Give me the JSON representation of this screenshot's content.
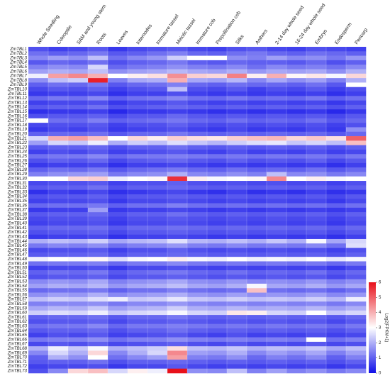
{
  "chart_data": {
    "type": "heatmap",
    "x": [
      "Whole Seedling",
      "Coleoptile",
      "SAM and young stem",
      "Roots",
      "Leaves",
      "Internodes",
      "Immature tassel",
      "Meiotic tassel",
      "Immature cob",
      "Prepollination cob",
      "Silks",
      "Anthers",
      "2-14 day whole seed",
      "16-24 day whole seed",
      "Embryo",
      "Endosperm",
      "Pericarp"
    ],
    "y": [
      "ZmTBL1",
      "ZmTBL2",
      "ZmTBL3",
      "ZmTBL4",
      "ZmTBL5",
      "ZmTBL6",
      "ZmTBL7",
      "ZmTBL8",
      "ZmTBL9",
      "ZmTBL10",
      "ZmTBL11",
      "ZmTBL12",
      "ZmTBL13",
      "ZmTBL14",
      "ZmTBL15",
      "ZmTBL16",
      "ZmTBL17",
      "ZmTBL18",
      "ZmTBL19",
      "ZmTBL20",
      "ZmTBL21",
      "ZmTBL22",
      "ZmTBL23",
      "ZmTBL24",
      "ZmTBL25",
      "ZmTBL26",
      "ZmTBL27",
      "ZmTBL28",
      "ZmTBL29",
      "ZmTBL30",
      "ZmTBL31",
      "ZmTBL32",
      "ZmTBL33",
      "ZmTBL34",
      "ZmTBL35",
      "ZmTBL36",
      "ZmTBL37",
      "ZmTBL38",
      "ZmTBL39",
      "ZmTBL40",
      "ZmTBL41",
      "ZmTBL42",
      "ZmTBL43",
      "ZmTBL44",
      "ZmTBL45",
      "ZmTBL46",
      "ZmTBL47",
      "ZmTBL48",
      "ZmTBL49",
      "ZmTBL50",
      "ZmTBL51",
      "ZmTBL52",
      "ZmTBL53",
      "ZmTBL54",
      "ZmTBL55",
      "ZmTBL56",
      "ZmTBL57",
      "ZmTBL58",
      "ZmTBL59",
      "ZmTBL60",
      "ZmTBL61",
      "ZmTBL62",
      "ZmTBL63",
      "ZmTBL64",
      "ZmTBL65",
      "ZmTBL66",
      "ZmTBL67",
      "ZmTBL68",
      "ZmTBL69",
      "ZmTBL70",
      "ZmTBL71",
      "ZmTBL72",
      "ZmTBL73"
    ],
    "values": [
      [
        0.8,
        0.6,
        0.7,
        0.9,
        0.5,
        0.7,
        0.8,
        0.9,
        0.7,
        0.6,
        0.8,
        0.9,
        0.7,
        0.6,
        0.8,
        0.7,
        0.6
      ],
      [
        1.2,
        1.0,
        1.1,
        1.3,
        0.9,
        1.0,
        1.2,
        1.4,
        1.1,
        1.0,
        1.2,
        1.3,
        1.1,
        1.0,
        1.2,
        1.1,
        1.0
      ],
      [
        1.5,
        1.8,
        1.6,
        2.2,
        1.2,
        1.5,
        1.7,
        2.4,
        3.0,
        3.0,
        1.6,
        1.4,
        1.8,
        1.5,
        1.6,
        1.3,
        1.7
      ],
      [
        0.9,
        1.1,
        1.0,
        1.2,
        0.8,
        1.0,
        1.1,
        1.3,
        1.0,
        0.9,
        1.1,
        1.0,
        1.0,
        0.9,
        1.1,
        0.8,
        1.0
      ],
      [
        1.4,
        1.6,
        1.5,
        2.5,
        1.1,
        1.3,
        1.4,
        1.6,
        1.4,
        1.3,
        1.5,
        1.2,
        1.5,
        1.3,
        1.4,
        1.2,
        1.5
      ],
      [
        1.8,
        2.0,
        1.9,
        2.2,
        1.6,
        1.8,
        1.9,
        2.1,
        1.9,
        1.8,
        2.0,
        1.7,
        1.9,
        1.8,
        1.9,
        1.6,
        2.0
      ],
      [
        2.8,
        4.2,
        4.5,
        4.0,
        3.0,
        3.2,
        3.4,
        4.4,
        3.6,
        3.5,
        4.6,
        3.2,
        4.0,
        3.1,
        3.3,
        2.9,
        3.5
      ],
      [
        1.6,
        2.2,
        2.4,
        5.8,
        1.4,
        1.9,
        2.0,
        4.0,
        1.9,
        1.8,
        2.1,
        1.5,
        1.9,
        1.6,
        1.8,
        1.4,
        2.0
      ],
      [
        1.0,
        1.2,
        1.1,
        1.3,
        0.9,
        1.1,
        1.2,
        1.4,
        1.1,
        1.0,
        1.2,
        1.1,
        1.1,
        1.0,
        1.2,
        0.9,
        3.0
      ],
      [
        0.7,
        0.9,
        0.8,
        1.0,
        0.6,
        0.8,
        0.9,
        2.2,
        0.8,
        0.7,
        0.9,
        0.6,
        0.8,
        0.7,
        0.9,
        0.6,
        0.8
      ],
      [
        0.5,
        0.6,
        0.6,
        0.7,
        0.4,
        0.6,
        0.6,
        0.8,
        0.6,
        0.5,
        0.6,
        0.5,
        0.6,
        0.5,
        0.6,
        0.4,
        0.6
      ],
      [
        1.1,
        1.3,
        1.2,
        1.5,
        1.0,
        1.2,
        1.3,
        1.5,
        1.2,
        1.1,
        1.3,
        1.1,
        1.2,
        1.1,
        1.3,
        1.0,
        1.2
      ],
      [
        0.6,
        0.7,
        0.7,
        0.8,
        0.5,
        0.7,
        0.7,
        0.9,
        0.7,
        0.6,
        0.7,
        0.6,
        0.7,
        0.6,
        0.7,
        0.5,
        0.7
      ],
      [
        0.9,
        1.0,
        1.0,
        1.2,
        0.8,
        0.9,
        1.0,
        1.1,
        1.0,
        0.9,
        1.0,
        0.9,
        1.0,
        0.9,
        1.0,
        0.8,
        1.0
      ],
      [
        0.4,
        0.5,
        0.5,
        0.6,
        0.3,
        0.5,
        0.5,
        0.6,
        0.5,
        0.4,
        0.5,
        0.4,
        0.5,
        0.4,
        0.5,
        0.3,
        0.5
      ],
      [
        0.8,
        0.9,
        0.9,
        1.0,
        0.7,
        0.9,
        0.9,
        1.1,
        0.9,
        0.8,
        0.9,
        0.8,
        0.9,
        0.8,
        0.9,
        0.7,
        0.9
      ],
      [
        3.0,
        1.2,
        1.1,
        1.4,
        1.0,
        1.1,
        1.2,
        1.3,
        1.1,
        1.0,
        1.2,
        1.0,
        1.1,
        1.0,
        1.2,
        0.9,
        1.1
      ],
      [
        0.7,
        0.8,
        0.8,
        0.9,
        0.6,
        0.8,
        0.8,
        1.0,
        0.8,
        0.7,
        0.8,
        0.7,
        0.8,
        0.7,
        0.8,
        0.6,
        0.8
      ],
      [
        0.5,
        0.7,
        0.6,
        0.8,
        0.5,
        0.6,
        0.7,
        0.8,
        0.6,
        0.5,
        0.7,
        0.5,
        0.6,
        0.5,
        0.7,
        0.5,
        1.6
      ],
      [
        1.0,
        1.1,
        1.1,
        1.2,
        0.9,
        1.1,
        1.1,
        1.3,
        1.1,
        1.0,
        1.1,
        1.0,
        1.1,
        1.0,
        1.1,
        0.9,
        1.1
      ],
      [
        2.5,
        4.0,
        4.2,
        3.8,
        3.0,
        3.5,
        3.2,
        3.6,
        3.4,
        3.3,
        3.6,
        3.8,
        3.9,
        3.5,
        3.7,
        3.4,
        5.0
      ],
      [
        1.8,
        2.5,
        2.3,
        2.8,
        2.0,
        2.4,
        2.2,
        2.6,
        2.3,
        2.1,
        2.4,
        2.6,
        2.7,
        2.3,
        2.5,
        2.2,
        3.8
      ],
      [
        0.9,
        1.0,
        1.0,
        1.1,
        0.8,
        1.0,
        1.0,
        1.2,
        1.0,
        0.9,
        1.0,
        0.9,
        1.0,
        0.9,
        1.0,
        0.8,
        1.0
      ],
      [
        0.6,
        0.8,
        0.7,
        0.9,
        0.6,
        0.7,
        0.8,
        0.9,
        0.7,
        0.6,
        0.8,
        0.6,
        0.7,
        0.6,
        0.8,
        0.6,
        0.7
      ],
      [
        1.2,
        1.3,
        1.3,
        1.5,
        1.1,
        1.3,
        1.3,
        1.4,
        1.3,
        1.2,
        1.3,
        1.2,
        1.3,
        1.2,
        1.3,
        1.1,
        1.3
      ],
      [
        0.8,
        1.0,
        0.9,
        1.1,
        0.7,
        0.9,
        1.0,
        1.1,
        0.9,
        0.8,
        1.0,
        0.8,
        0.9,
        0.8,
        1.0,
        0.7,
        0.9
      ],
      [
        0.5,
        0.6,
        0.6,
        0.7,
        0.4,
        0.6,
        0.6,
        0.7,
        0.6,
        0.5,
        0.6,
        0.5,
        0.6,
        0.5,
        0.6,
        0.4,
        0.6
      ],
      [
        1.0,
        1.2,
        1.1,
        1.3,
        0.9,
        1.1,
        1.2,
        1.3,
        1.1,
        1.0,
        1.2,
        1.0,
        1.1,
        1.0,
        1.2,
        0.9,
        1.1
      ],
      [
        1.4,
        1.6,
        1.7,
        1.8,
        1.3,
        1.5,
        1.6,
        2.0,
        1.5,
        1.4,
        1.6,
        1.4,
        2.2,
        1.5,
        1.6,
        1.3,
        1.5
      ],
      [
        3.0,
        3.0,
        3.5,
        3.6,
        2.8,
        3.0,
        3.1,
        5.6,
        3.2,
        2.9,
        3.0,
        3.1,
        4.5,
        3.0,
        3.2,
        2.9,
        3.0
      ],
      [
        0.7,
        0.8,
        0.8,
        0.9,
        0.6,
        0.8,
        0.8,
        1.0,
        0.8,
        0.7,
        0.8,
        0.7,
        0.8,
        0.7,
        0.8,
        0.6,
        0.8
      ],
      [
        0.9,
        1.0,
        1.0,
        1.2,
        0.8,
        1.0,
        1.0,
        1.1,
        1.0,
        0.9,
        1.0,
        0.9,
        1.0,
        0.9,
        1.0,
        0.8,
        1.0
      ],
      [
        0.4,
        0.6,
        0.5,
        0.7,
        0.4,
        0.5,
        0.6,
        0.7,
        0.5,
        0.4,
        0.6,
        0.4,
        0.5,
        0.4,
        0.6,
        0.4,
        0.5
      ],
      [
        0.8,
        0.9,
        0.9,
        1.0,
        0.7,
        0.9,
        0.9,
        1.0,
        0.9,
        0.8,
        0.9,
        0.8,
        0.9,
        0.8,
        0.9,
        0.7,
        0.9
      ],
      [
        0.6,
        0.7,
        0.7,
        0.8,
        0.5,
        0.7,
        0.7,
        0.8,
        0.7,
        0.6,
        0.7,
        0.6,
        0.7,
        0.6,
        0.7,
        0.5,
        0.7
      ],
      [
        1.1,
        1.2,
        1.2,
        1.3,
        1.0,
        1.2,
        1.2,
        1.4,
        1.2,
        1.1,
        1.2,
        1.1,
        1.2,
        1.1,
        1.2,
        1.0,
        1.2
      ],
      [
        0.5,
        0.6,
        0.6,
        1.8,
        0.5,
        0.6,
        0.6,
        0.7,
        0.6,
        0.5,
        0.6,
        0.5,
        0.6,
        0.5,
        0.6,
        0.5,
        0.6
      ],
      [
        0.9,
        1.0,
        1.0,
        1.1,
        0.8,
        1.0,
        1.0,
        1.2,
        1.0,
        0.9,
        1.0,
        0.9,
        1.0,
        0.9,
        1.0,
        0.8,
        1.0
      ],
      [
        0.7,
        0.8,
        0.8,
        0.9,
        0.6,
        0.8,
        0.8,
        0.9,
        0.8,
        0.7,
        0.8,
        0.7,
        0.8,
        0.7,
        0.8,
        0.6,
        0.8
      ],
      [
        0.6,
        0.7,
        0.7,
        0.8,
        0.5,
        0.7,
        0.7,
        0.8,
        0.7,
        0.6,
        0.7,
        0.6,
        0.7,
        0.6,
        0.7,
        0.5,
        0.7
      ],
      [
        1.0,
        1.1,
        1.1,
        1.2,
        0.9,
        1.1,
        1.1,
        1.2,
        1.1,
        1.0,
        1.1,
        1.0,
        1.1,
        1.0,
        1.1,
        0.9,
        1.1
      ],
      [
        0.8,
        0.9,
        0.9,
        1.0,
        0.7,
        0.9,
        0.9,
        1.0,
        0.9,
        0.8,
        0.9,
        0.8,
        0.9,
        0.8,
        0.9,
        0.7,
        0.9
      ],
      [
        0.5,
        0.6,
        0.6,
        0.7,
        0.4,
        0.6,
        0.6,
        0.7,
        0.6,
        0.5,
        0.6,
        0.5,
        0.6,
        0.5,
        0.6,
        0.4,
        0.6
      ],
      [
        2.0,
        2.2,
        2.1,
        2.4,
        1.9,
        2.1,
        2.2,
        2.6,
        2.1,
        2.0,
        2.2,
        2.0,
        2.3,
        2.0,
        2.9,
        1.9,
        2.5
      ],
      [
        1.3,
        1.5,
        1.4,
        1.6,
        1.2,
        1.4,
        1.5,
        1.7,
        1.4,
        1.3,
        1.5,
        1.3,
        1.4,
        1.3,
        1.5,
        1.2,
        2.6
      ],
      [
        0.7,
        0.8,
        0.8,
        0.9,
        0.6,
        0.8,
        0.8,
        1.0,
        0.8,
        0.7,
        0.8,
        0.7,
        0.8,
        0.7,
        0.8,
        0.6,
        0.8
      ],
      [
        0.9,
        1.0,
        1.0,
        1.1,
        0.8,
        1.0,
        1.0,
        1.1,
        1.0,
        0.9,
        1.0,
        0.9,
        1.0,
        0.9,
        1.0,
        0.8,
        1.0
      ],
      [
        2.8,
        3.0,
        2.9,
        3.1,
        2.6,
        2.9,
        3.0,
        3.2,
        2.9,
        2.8,
        3.0,
        2.8,
        2.9,
        2.8,
        3.0,
        2.7,
        2.9
      ],
      [
        1.2,
        1.3,
        1.3,
        1.4,
        1.1,
        1.3,
        1.3,
        1.5,
        1.3,
        1.2,
        1.3,
        1.2,
        1.3,
        1.2,
        1.3,
        1.1,
        1.3
      ],
      [
        0.6,
        0.7,
        0.7,
        0.8,
        0.5,
        0.7,
        0.7,
        0.8,
        0.7,
        0.6,
        0.7,
        0.6,
        0.7,
        0.6,
        0.7,
        0.5,
        0.7
      ],
      [
        1.0,
        1.2,
        1.1,
        1.3,
        0.9,
        1.1,
        1.2,
        1.3,
        1.1,
        1.0,
        1.2,
        1.0,
        1.1,
        1.0,
        1.2,
        0.9,
        1.1
      ],
      [
        0.8,
        0.9,
        0.9,
        1.0,
        0.7,
        0.9,
        0.9,
        1.0,
        0.9,
        0.8,
        0.9,
        0.8,
        0.9,
        0.8,
        0.9,
        0.7,
        0.9
      ],
      [
        1.5,
        1.7,
        1.6,
        1.9,
        1.4,
        1.6,
        1.7,
        1.9,
        1.6,
        1.5,
        1.7,
        1.5,
        1.6,
        1.5,
        1.7,
        1.4,
        1.6
      ],
      [
        1.8,
        2.0,
        1.9,
        2.1,
        1.7,
        1.9,
        2.0,
        2.2,
        1.9,
        1.8,
        2.0,
        2.9,
        1.9,
        1.8,
        2.0,
        1.7,
        1.9
      ],
      [
        1.1,
        1.2,
        1.2,
        1.3,
        1.0,
        1.2,
        1.2,
        1.4,
        1.2,
        1.1,
        1.2,
        3.8,
        1.2,
        1.1,
        1.2,
        1.0,
        1.2
      ],
      [
        1.6,
        1.8,
        1.7,
        2.0,
        1.5,
        1.7,
        1.8,
        2.0,
        1.7,
        1.6,
        1.8,
        1.6,
        1.7,
        1.6,
        1.8,
        1.5,
        1.7
      ],
      [
        2.2,
        2.4,
        2.3,
        2.6,
        2.8,
        2.3,
        2.4,
        2.7,
        2.3,
        2.2,
        2.4,
        2.2,
        2.3,
        2.2,
        2.4,
        2.1,
        2.8
      ],
      [
        1.4,
        1.5,
        1.5,
        1.6,
        1.3,
        1.5,
        1.5,
        1.7,
        1.5,
        1.4,
        1.5,
        1.4,
        1.5,
        1.4,
        1.5,
        1.3,
        1.5
      ],
      [
        1.9,
        2.1,
        2.0,
        2.3,
        1.8,
        2.0,
        2.1,
        2.4,
        2.0,
        1.9,
        2.1,
        1.9,
        2.0,
        1.9,
        2.1,
        1.8,
        2.0
      ],
      [
        2.4,
        2.6,
        2.5,
        2.8,
        2.3,
        2.5,
        2.6,
        2.9,
        2.5,
        2.4,
        3.3,
        3.2,
        2.5,
        2.4,
        3.0,
        2.3,
        2.5
      ],
      [
        1.0,
        1.1,
        1.1,
        1.2,
        0.9,
        1.1,
        1.1,
        1.3,
        1.1,
        1.0,
        1.1,
        1.0,
        1.1,
        1.0,
        1.1,
        0.9,
        1.1
      ],
      [
        0.8,
        0.9,
        0.9,
        1.0,
        0.7,
        0.9,
        0.9,
        1.0,
        0.9,
        0.8,
        0.9,
        0.8,
        0.9,
        0.8,
        0.9,
        0.7,
        0.9
      ],
      [
        1.2,
        1.3,
        1.3,
        1.5,
        1.1,
        1.3,
        1.3,
        1.4,
        1.3,
        1.2,
        1.3,
        1.2,
        1.3,
        1.2,
        1.3,
        1.1,
        1.3
      ],
      [
        0.9,
        1.0,
        1.0,
        1.1,
        0.8,
        1.0,
        1.0,
        1.2,
        1.0,
        0.9,
        1.0,
        0.9,
        1.0,
        0.9,
        1.0,
        0.8,
        1.0
      ],
      [
        0.6,
        0.8,
        0.7,
        0.9,
        0.6,
        0.7,
        0.8,
        0.9,
        0.7,
        0.6,
        0.8,
        0.6,
        0.7,
        0.6,
        0.8,
        0.6,
        0.7
      ],
      [
        1.3,
        1.4,
        1.4,
        1.6,
        1.2,
        1.4,
        1.4,
        1.6,
        1.4,
        1.3,
        1.4,
        1.3,
        1.4,
        1.3,
        3.0,
        1.2,
        1.4
      ],
      [
        0.7,
        0.9,
        0.8,
        1.0,
        0.7,
        0.8,
        0.9,
        1.0,
        0.8,
        0.7,
        0.9,
        0.7,
        0.8,
        0.7,
        0.9,
        0.7,
        0.8
      ],
      [
        2.0,
        2.8,
        2.3,
        2.9,
        2.0,
        2.2,
        2.4,
        3.4,
        2.2,
        2.1,
        2.3,
        2.0,
        2.2,
        2.1,
        2.3,
        1.9,
        2.2
      ],
      [
        1.5,
        2.5,
        2.0,
        3.5,
        1.5,
        2.0,
        2.5,
        4.5,
        1.8,
        1.7,
        2.0,
        1.5,
        1.8,
        1.6,
        1.9,
        1.4,
        1.8
      ],
      [
        1.0,
        2.0,
        1.6,
        3.0,
        1.2,
        1.5,
        1.8,
        4.2,
        1.4,
        1.3,
        1.6,
        1.1,
        1.4,
        1.2,
        1.5,
        1.0,
        1.4
      ],
      [
        0.9,
        1.0,
        1.0,
        1.2,
        0.8,
        1.0,
        1.0,
        1.1,
        1.0,
        0.9,
        1.0,
        0.9,
        1.0,
        0.9,
        1.0,
        0.8,
        1.0
      ],
      [
        0.6,
        0.7,
        0.7,
        0.8,
        0.5,
        0.7,
        0.7,
        0.9,
        0.7,
        0.6,
        0.7,
        0.6,
        0.7,
        0.6,
        0.7,
        0.5,
        0.7
      ],
      [
        0.8,
        1.5,
        3.5,
        3.8,
        2.5,
        3.2,
        2.8,
        6.0,
        1.6,
        1.5,
        2.2,
        1.4,
        1.8,
        1.4,
        1.6,
        1.3,
        1.5
      ]
    ],
    "zlim": [
      0,
      6
    ],
    "zticks": [
      0,
      1,
      2,
      3,
      4,
      5,
      6
    ],
    "colorbar_label": "Log2(FPKM+1)",
    "colors": [
      "#1010e8",
      "#ffffff",
      "#e8101a"
    ]
  }
}
